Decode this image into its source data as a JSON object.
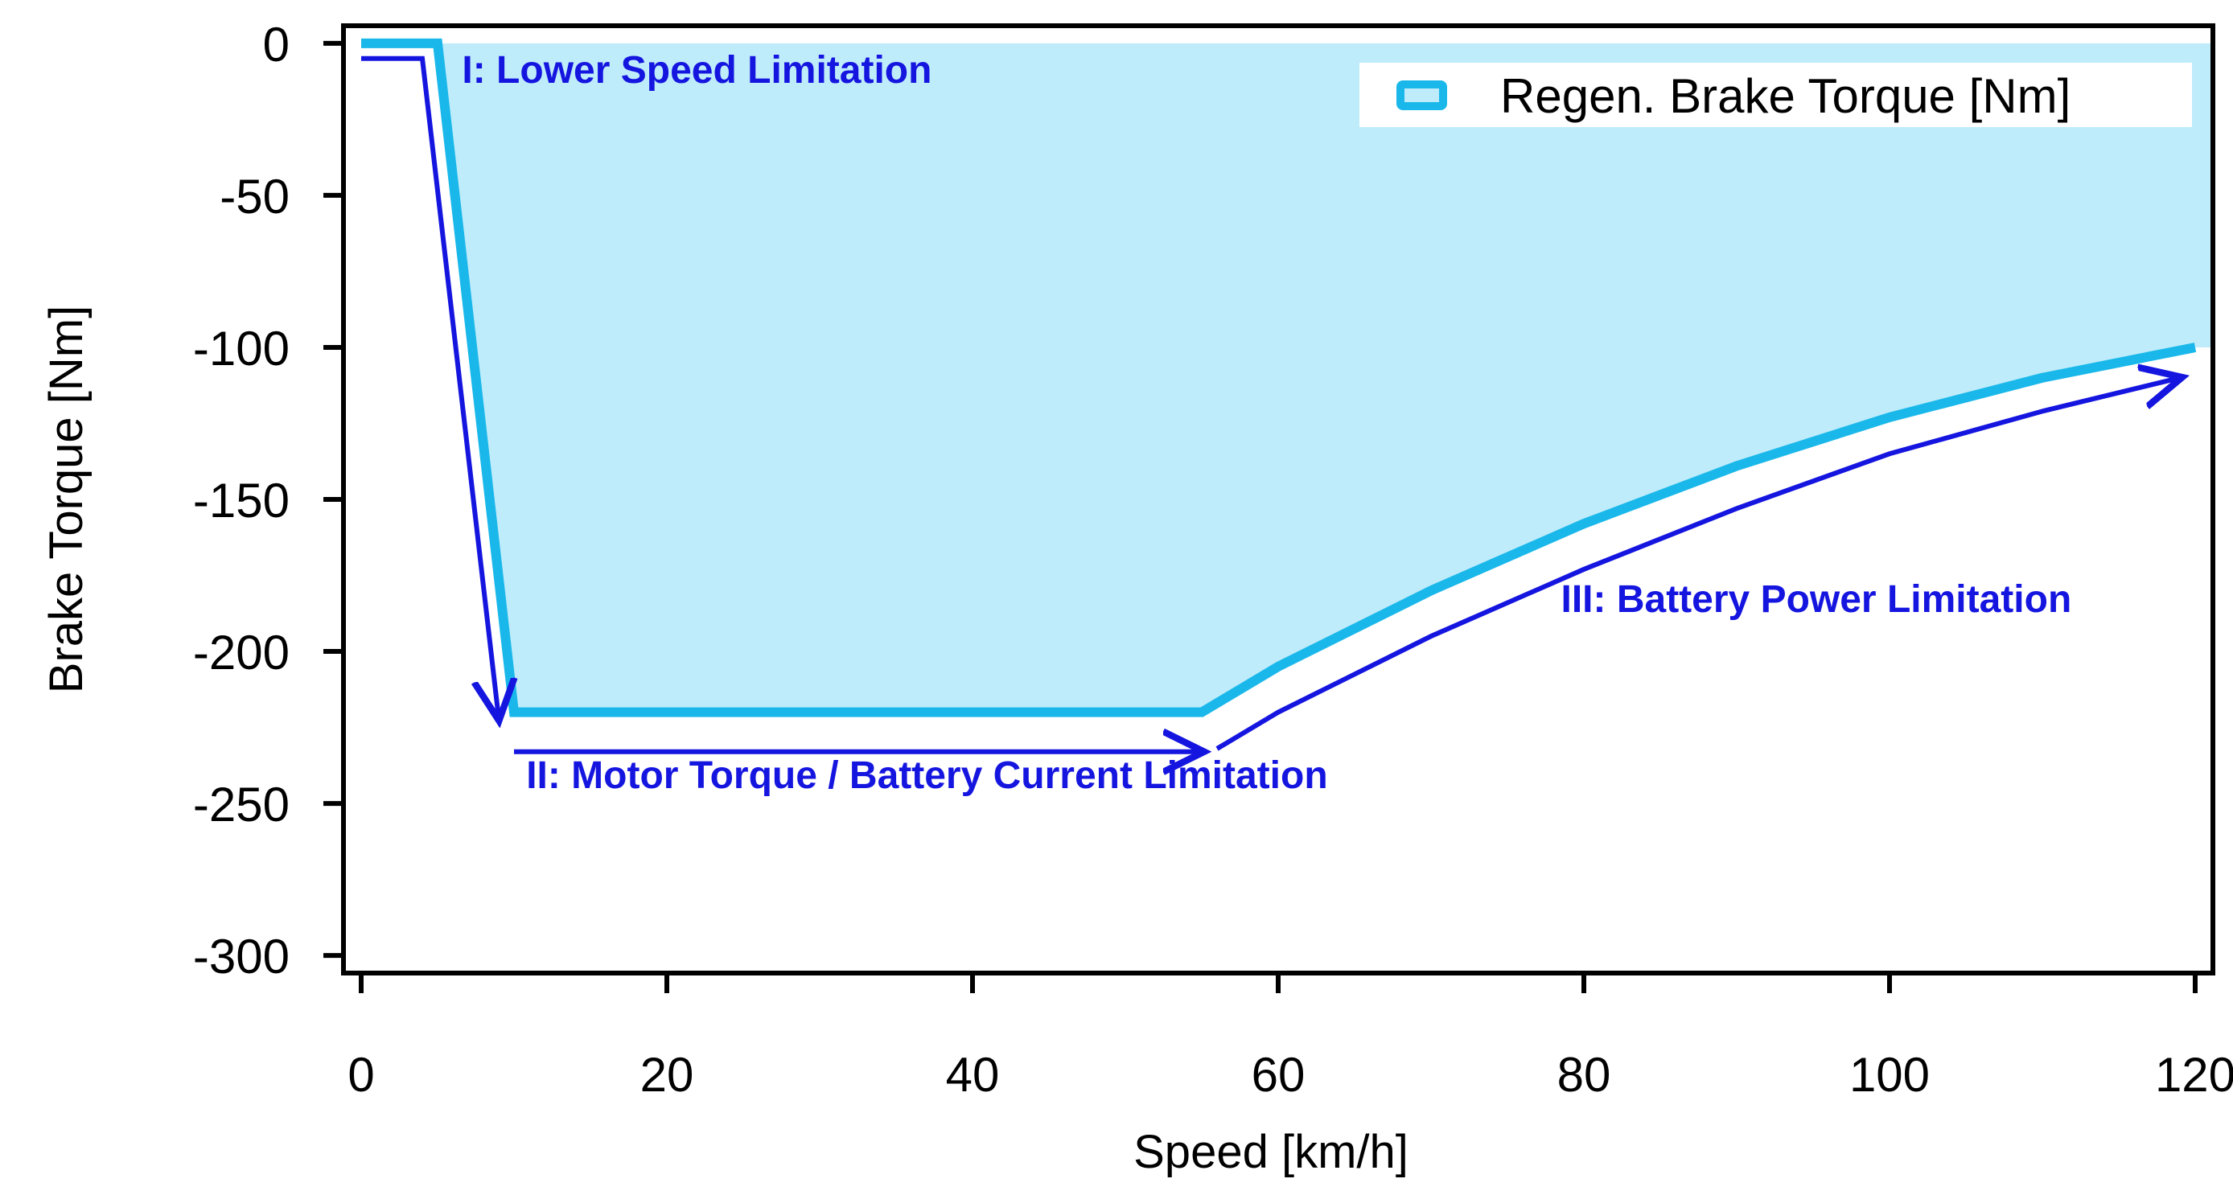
{
  "chart_data": {
    "type": "area",
    "xlabel": "Speed [km/h]",
    "ylabel": "Brake Torque [Nm]",
    "xlim": [
      -1,
      121
    ],
    "ylim": [
      -305,
      5
    ],
    "xticks": [
      0,
      20,
      40,
      60,
      80,
      100,
      120
    ],
    "yticks": [
      0,
      -50,
      -100,
      -150,
      -200,
      -250,
      -300
    ],
    "grid": false,
    "legend": {
      "position": "top-right",
      "label": "Regen. Brake Torque [Nm]"
    },
    "series": [
      {
        "name": "Regen. Brake Torque [Nm]",
        "color": "#1ab8ea",
        "fill": "#bfecfb",
        "x": [
          0,
          5,
          10,
          55,
          60,
          70,
          80,
          90,
          100,
          110,
          120
        ],
        "y": [
          0,
          0,
          -220,
          -220,
          -205,
          -180,
          -158,
          -139,
          -123,
          -110,
          -100
        ]
      }
    ],
    "annotations": [
      {
        "label": "I: Lower Speed Limitation",
        "color": "#1515e0",
        "arrow": {
          "x": [
            0,
            4,
            9
          ],
          "y": [
            -5,
            -5,
            -222
          ]
        },
        "text_at": {
          "x": 6.6,
          "y": -13
        }
      },
      {
        "label": "II: Motor Torque / Battery Current Limitation",
        "color": "#1515e0",
        "arrow": {
          "x": [
            10,
            55
          ],
          "y": [
            -233,
            -233
          ]
        },
        "text_at": {
          "x": 10.8,
          "y": -245
        }
      },
      {
        "label": "III: Battery Power Limitation",
        "color": "#1515e0",
        "arrow": {
          "x": [
            56,
            60,
            70,
            80,
            90,
            100,
            110,
            119
          ],
          "y": [
            -232,
            -220,
            -195,
            -173,
            -153,
            -135,
            -121,
            -110
          ]
        },
        "text_at": {
          "x": 78.5,
          "y": -187
        }
      }
    ]
  }
}
